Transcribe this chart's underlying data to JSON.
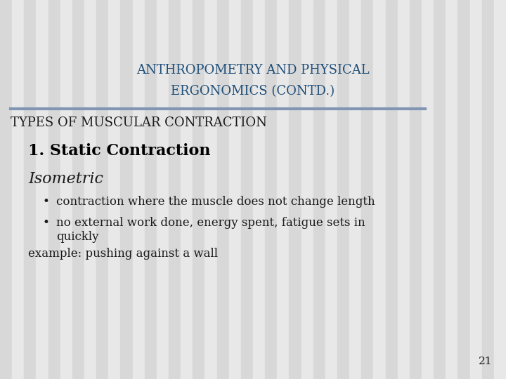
{
  "title_line1": "ANTHROPOMETRY AND PHYSICAL",
  "title_line2": "ERGONOMICS (CONTD.)",
  "title_color": "#1F4E79",
  "title_fontsize": 13,
  "section_heading": "TYPES OF MUSCULAR CONTRACTION",
  "section_heading_fontsize": 13,
  "section_heading_color": "#1a1a1a",
  "subheading": "1. Static Contraction",
  "subheading_fontsize": 16,
  "subheading_color": "#000000",
  "italic_heading": "Isometric",
  "italic_heading_fontsize": 16,
  "italic_heading_color": "#1a1a1a",
  "bullet1": "contraction where the muscle does not change length",
  "bullet2a": "no external work done, energy spent, fatigue sets in",
  "bullet2b": "quickly",
  "example": "example: pushing against a wall",
  "bullet_fontsize": 12,
  "example_fontsize": 12,
  "page_number": "21",
  "page_number_fontsize": 11,
  "bg_color": "#e8e8e8",
  "stripe_color1": "#d8d8d8",
  "stripe_color2": "#e8e8e8",
  "divider_color": "#8096b4",
  "content_color": "#1a1a1a",
  "stripe_count": 42
}
